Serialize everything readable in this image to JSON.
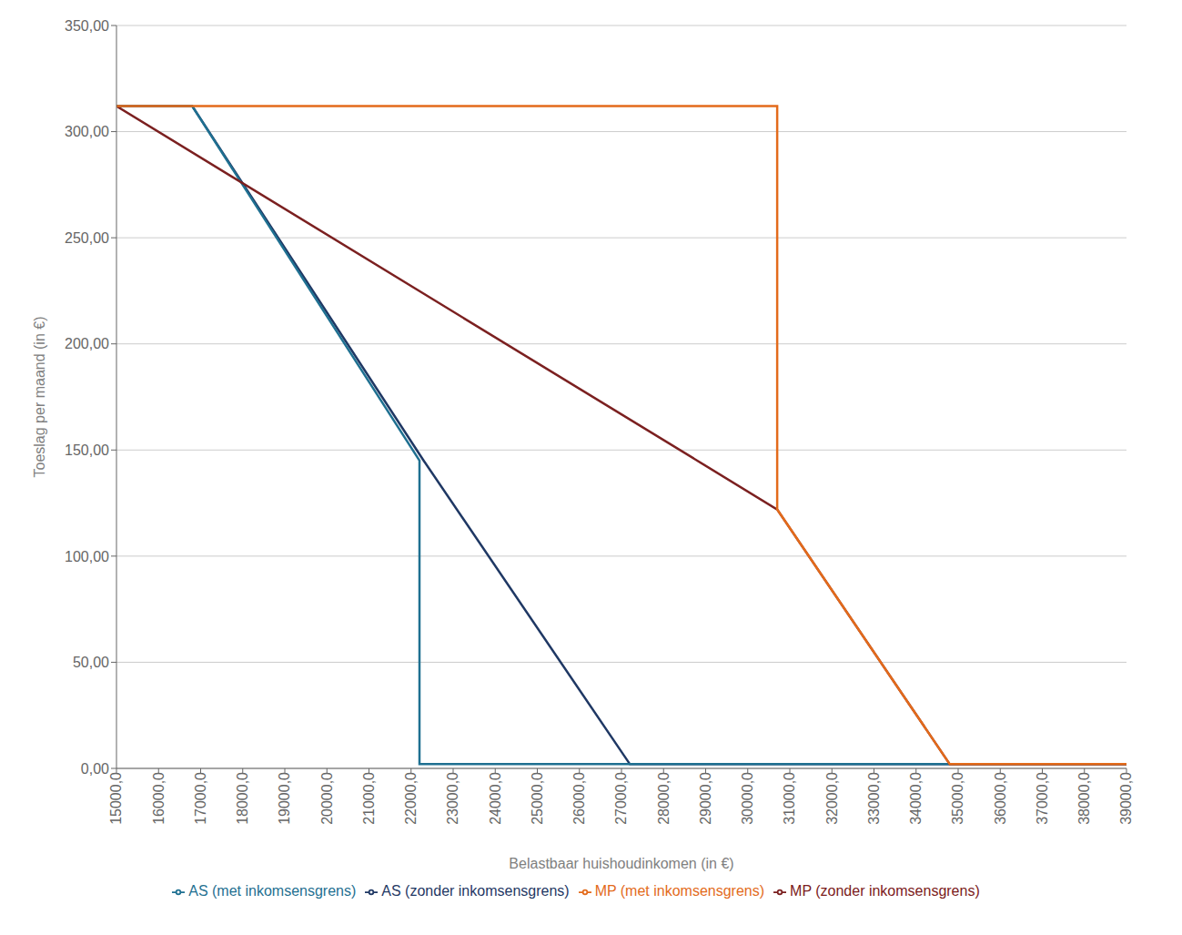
{
  "chart_data": {
    "type": "line",
    "xlabel": "Belastbaar huishoudinkomen (in €)",
    "ylabel": "Toeslag per maand (in €)",
    "xlim": [
      15000,
      39000
    ],
    "ylim": [
      0,
      350
    ],
    "xticks": [
      {
        "value": 15000,
        "label": "15000,0"
      },
      {
        "value": 16000,
        "label": "16000,0"
      },
      {
        "value": 17000,
        "label": "17000,0"
      },
      {
        "value": 18000,
        "label": "18000,0"
      },
      {
        "value": 19000,
        "label": "19000,0"
      },
      {
        "value": 20000,
        "label": "20000,0"
      },
      {
        "value": 21000,
        "label": "21000,0"
      },
      {
        "value": 22000,
        "label": "22000,0"
      },
      {
        "value": 23000,
        "label": "23000,0"
      },
      {
        "value": 24000,
        "label": "24000,0"
      },
      {
        "value": 25000,
        "label": "25000,0"
      },
      {
        "value": 26000,
        "label": "26000,0"
      },
      {
        "value": 27000,
        "label": "27000,0"
      },
      {
        "value": 28000,
        "label": "28000,0"
      },
      {
        "value": 29000,
        "label": "29000,0"
      },
      {
        "value": 30000,
        "label": "30000,0"
      },
      {
        "value": 31000,
        "label": "31000,0"
      },
      {
        "value": 32000,
        "label": "32000,0"
      },
      {
        "value": 33000,
        "label": "33000,0"
      },
      {
        "value": 34000,
        "label": "34000,0"
      },
      {
        "value": 35000,
        "label": "35000,0"
      },
      {
        "value": 36000,
        "label": "36000,0"
      },
      {
        "value": 37000,
        "label": "37000,0"
      },
      {
        "value": 38000,
        "label": "38000,0"
      },
      {
        "value": 39000,
        "label": "39000,0"
      }
    ],
    "yticks": [
      {
        "value": 0,
        "label": "0,00"
      },
      {
        "value": 50,
        "label": "50,00"
      },
      {
        "value": 100,
        "label": "100,00"
      },
      {
        "value": 150,
        "label": "150,00"
      },
      {
        "value": 200,
        "label": "200,00"
      },
      {
        "value": 250,
        "label": "250,00"
      },
      {
        "value": 300,
        "label": "300,00"
      },
      {
        "value": 350,
        "label": "350,00"
      }
    ],
    "grid": "y",
    "legend": "bottom",
    "series": [
      {
        "name": "AS (zonder inkomsensgrens)",
        "color": "#1F3864",
        "x": [
          15000,
          16800,
          22300,
          27200,
          39000
        ],
        "values": [
          312,
          312,
          145,
          2,
          2
        ]
      },
      {
        "name": "AS (met inkomsensgrens)",
        "color": "#1F7091",
        "x": [
          15000,
          16800,
          22200,
          22200,
          27200,
          39000
        ],
        "values": [
          312,
          312,
          145,
          2,
          2,
          2
        ]
      },
      {
        "name": "MP (zonder inkomsensgrens)",
        "color": "#7B2020",
        "x": [
          15000,
          30700,
          34800,
          39000
        ],
        "values": [
          312,
          122,
          2,
          2
        ]
      },
      {
        "name": "MP (met inkomsensgrens)",
        "color": "#E36B1B",
        "x": [
          15000,
          22500,
          22500,
          30700,
          30700,
          34800,
          39000
        ],
        "values": [
          312,
          312,
          312,
          312,
          122,
          2,
          2
        ]
      }
    ]
  }
}
